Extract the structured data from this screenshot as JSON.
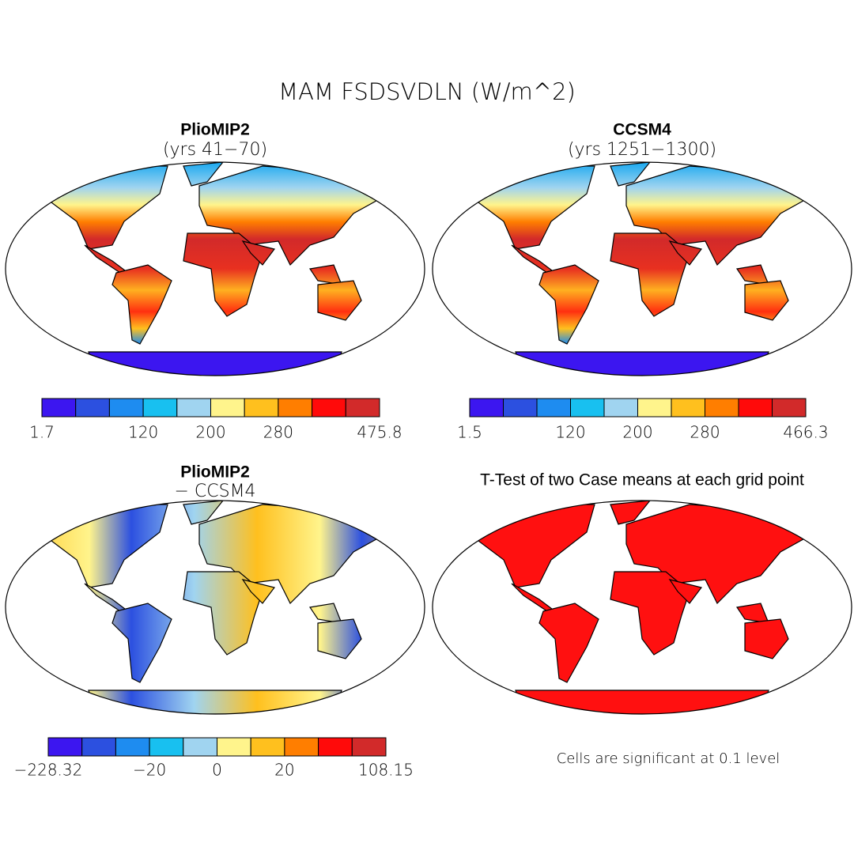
{
  "title": "MAM FSDSVDLN (W/m^2)",
  "colorbar_colors": [
    "#3c16f0",
    "#2c50e0",
    "#1e8cf0",
    "#18c0f0",
    "#a0d4f0",
    "#fff48c",
    "#ffc01e",
    "#ff7e00",
    "#ff0a0a",
    "#d22a2a"
  ],
  "panels": [
    {
      "title": "PlioMIP2",
      "subtitle": "(yrs 41−70)",
      "colorbar_labels": [
        "1.7",
        "120",
        "200",
        "280",
        "475.8"
      ]
    },
    {
      "title": "CCSM4",
      "subtitle": "(yrs 1251−1300)",
      "colorbar_labels": [
        "1.5",
        "120",
        "200",
        "280",
        "466.3"
      ]
    },
    {
      "title": "PlioMIP2",
      "subtitle": "− CCSM4",
      "colorbar_labels": [
        "−228.32",
        "−20",
        "0",
        "20",
        "108.15"
      ]
    },
    {
      "title": "T-Test of two Case means at each grid point",
      "note": "Cells are significant at 0.1 level"
    }
  ]
}
